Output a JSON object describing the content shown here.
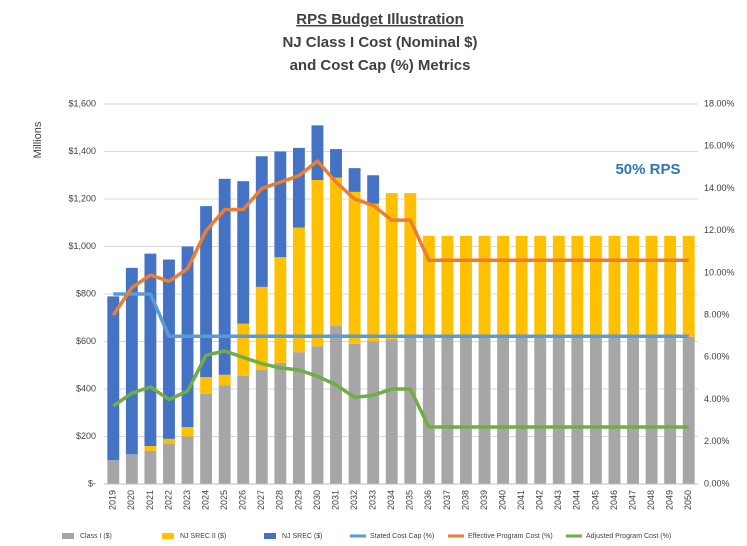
{
  "chart_data": {
    "type": "bar",
    "stacked": true,
    "title": "RPS Budget Illustration",
    "subtitle": [
      "NJ Class I Cost (Nominal $)",
      "and Cost Cap (%) Metrics"
    ],
    "y_label": "Millions",
    "annotation": "50% RPS",
    "categories": [
      "2019",
      "2020",
      "2021",
      "2022",
      "2023",
      "2024",
      "2025",
      "2026",
      "2027",
      "2028",
      "2029",
      "2030",
      "2031",
      "2032",
      "2033",
      "2034",
      "2035",
      "2036",
      "2037",
      "2038",
      "2039",
      "2040",
      "2041",
      "2042",
      "2043",
      "2044",
      "2045",
      "2046",
      "2047",
      "2048",
      "2049",
      "2050"
    ],
    "series": [
      {
        "name": "Class I ($)",
        "color": "#a6a6a6",
        "type": "bar",
        "values": [
          100,
          125,
          140,
          170,
          200,
          380,
          415,
          455,
          480,
          510,
          555,
          580,
          665,
          590,
          600,
          610,
          620,
          620,
          620,
          620,
          620,
          620,
          620,
          620,
          620,
          620,
          620,
          620,
          620,
          620,
          620,
          620
        ]
      },
      {
        "name": "NJ SREC II ($)",
        "color": "#ffc000",
        "type": "bar",
        "values": [
          0,
          0,
          20,
          20,
          40,
          70,
          45,
          220,
          350,
          445,
          525,
          700,
          625,
          640,
          580,
          615,
          605,
          425,
          425,
          425,
          425,
          425,
          425,
          425,
          425,
          425,
          425,
          425,
          425,
          425,
          425,
          425
        ]
      },
      {
        "name": "NJ SREC ($)",
        "color": "#4472c4",
        "type": "bar",
        "values": [
          690,
          785,
          810,
          755,
          760,
          720,
          825,
          600,
          550,
          445,
          335,
          230,
          120,
          100,
          120,
          0,
          0,
          0,
          0,
          0,
          0,
          0,
          0,
          0,
          0,
          0,
          0,
          0,
          0,
          0,
          0,
          0
        ]
      },
      {
        "name": "Stated Cost Cap (%)",
        "color": "#5b9bd5",
        "type": "line",
        "axis": "y2",
        "values": [
          9,
          9,
          9,
          7,
          7,
          7,
          7,
          7,
          7,
          7,
          7,
          7,
          7,
          7,
          7,
          7,
          7,
          7,
          7,
          7,
          7,
          7,
          7,
          7,
          7,
          7,
          7,
          7,
          7,
          7,
          7,
          7
        ]
      },
      {
        "name": "Effective Program Cost (%)",
        "color": "#ed7d31",
        "type": "line",
        "axis": "y2",
        "values": [
          8.0,
          9.3,
          9.9,
          9.6,
          10.2,
          12.0,
          13.0,
          13.0,
          14.0,
          14.3,
          14.6,
          15.3,
          14.3,
          13.5,
          13.2,
          12.5,
          12.5,
          10.6,
          10.6,
          10.6,
          10.6,
          10.6,
          10.6,
          10.6,
          10.6,
          10.6,
          10.6,
          10.6,
          10.6,
          10.6,
          10.6,
          10.6
        ]
      },
      {
        "name": "Adjusted Program Cost (%)",
        "color": "#70ad47",
        "type": "line",
        "axis": "y2",
        "values": [
          3.7,
          4.3,
          4.6,
          4.0,
          4.4,
          6.1,
          6.3,
          6.0,
          5.7,
          5.5,
          5.4,
          5.1,
          4.7,
          4.1,
          4.2,
          4.5,
          4.5,
          2.7,
          2.7,
          2.7,
          2.7,
          2.7,
          2.7,
          2.7,
          2.7,
          2.7,
          2.7,
          2.7,
          2.7,
          2.7,
          2.7,
          2.7
        ]
      }
    ],
    "ylim": [
      0,
      1600
    ],
    "yticks": [
      {
        "value": 0,
        "label": "$-"
      },
      {
        "value": 200,
        "label": "$200"
      },
      {
        "value": 400,
        "label": "$400"
      },
      {
        "value": 600,
        "label": "$600"
      },
      {
        "value": 800,
        "label": "$800"
      },
      {
        "value": 1000,
        "label": "$1,000"
      },
      {
        "value": 1200,
        "label": "$1,200"
      },
      {
        "value": 1400,
        "label": "$1,400"
      },
      {
        "value": 1600,
        "label": "$1,600"
      }
    ],
    "y2lim": [
      0,
      18
    ],
    "y2ticks": [
      {
        "value": 0,
        "label": "0.00%"
      },
      {
        "value": 2,
        "label": "2.00%"
      },
      {
        "value": 4,
        "label": "4.00%"
      },
      {
        "value": 6,
        "label": "6.00%"
      },
      {
        "value": 8,
        "label": "8.00%"
      },
      {
        "value": 10,
        "label": "10.00%"
      },
      {
        "value": 12,
        "label": "12.00%"
      },
      {
        "value": 14,
        "label": "14.00%"
      },
      {
        "value": 16,
        "label": "16.00%"
      },
      {
        "value": 18,
        "label": "18.00%"
      }
    ],
    "grid": true,
    "legend": "bottom"
  }
}
